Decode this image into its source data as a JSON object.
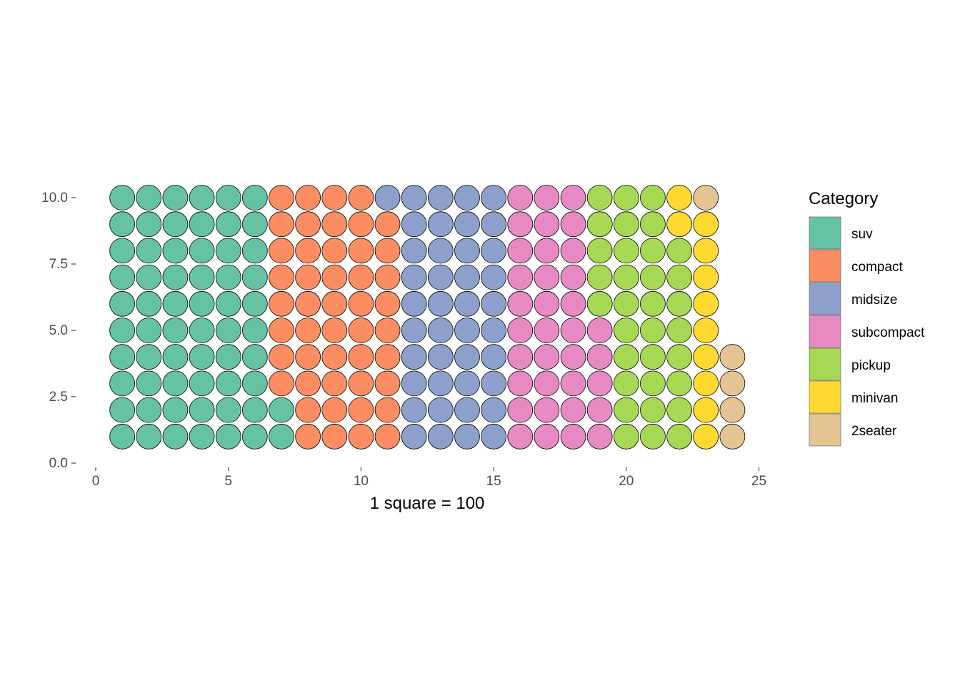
{
  "chart_data": {
    "type": "waffle",
    "xlabel": "1 square = 100",
    "xlim": [
      0,
      25
    ],
    "ylim": [
      0,
      10
    ],
    "x_ticks": [
      "0",
      "5",
      "10",
      "15",
      "20",
      "25"
    ],
    "y_ticks": [
      "0.0",
      "2.5",
      "5.0",
      "7.5",
      "10.0"
    ],
    "unit_value": 100,
    "legend": {
      "title": "Category",
      "placement": "right"
    },
    "series": [
      {
        "name": "suv",
        "count": 62,
        "color": "#66C2A5"
      },
      {
        "name": "compact",
        "count": 47,
        "color": "#FC8D62"
      },
      {
        "name": "midsize",
        "count": 41,
        "color": "#8DA0CB"
      },
      {
        "name": "subcompact",
        "count": 35,
        "color": "#E78AC3"
      },
      {
        "name": "pickup",
        "count": 33,
        "color": "#A6D854"
      },
      {
        "name": "minivan",
        "count": 11,
        "color": "#FFD92F"
      },
      {
        "name": "2seater",
        "count": 5,
        "color": "#E5C494"
      }
    ]
  }
}
